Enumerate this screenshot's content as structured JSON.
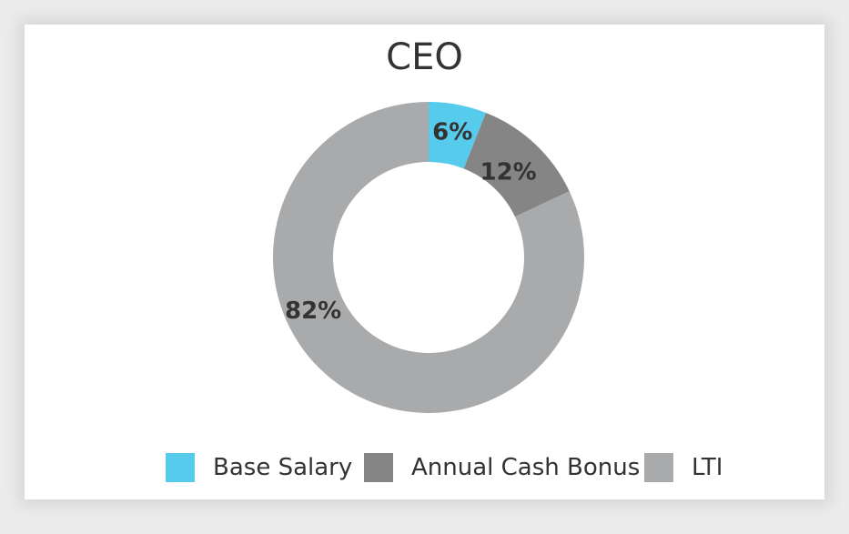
{
  "colors": {
    "base_salary": "#56cbeb",
    "annual_cash_bonus": "#858585",
    "lti": "#a9aaab",
    "label_text": "#333333"
  },
  "chart_data": {
    "type": "pie",
    "title": "CEO",
    "labels": [
      "Base Salary",
      "Annual Cash Bonus",
      "LTI"
    ],
    "values": [
      6,
      12,
      82
    ],
    "value_labels": [
      "6%",
      "12%",
      "82%"
    ],
    "colors": [
      "#56cbeb",
      "#858585",
      "#a9aaab"
    ],
    "donut": true,
    "legend_position": "bottom"
  }
}
